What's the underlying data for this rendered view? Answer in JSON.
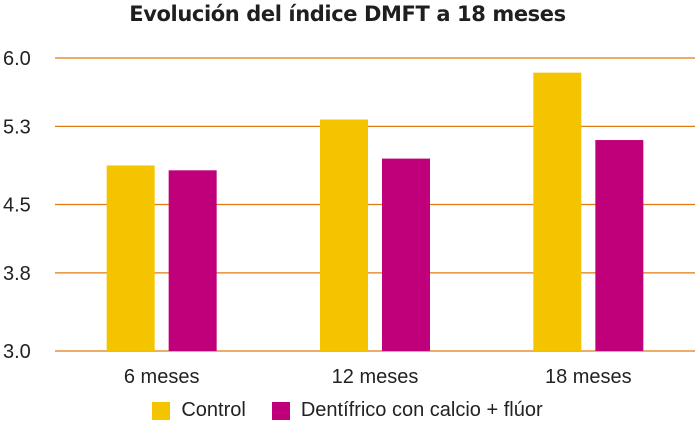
{
  "chart_data": {
    "type": "bar",
    "title": "Evolución del índice DMFT a 18 meses",
    "categories": [
      "6 meses",
      "12 meses",
      "18 meses"
    ],
    "series": [
      {
        "name": "Control",
        "values": [
          4.9,
          5.37,
          5.85
        ],
        "color": "#F5C400"
      },
      {
        "name": "Dentífrico con calcio + flúor",
        "values": [
          4.85,
          4.97,
          5.16
        ],
        "color": "#C0007A"
      }
    ],
    "ylim": [
      3.0,
      6.0
    ],
    "yticks": [
      "3.0",
      "3.8",
      "4.5",
      "5.3",
      "6.0"
    ],
    "grid": true,
    "gridline_color": "#E07A12",
    "legend_position": "bottom"
  }
}
